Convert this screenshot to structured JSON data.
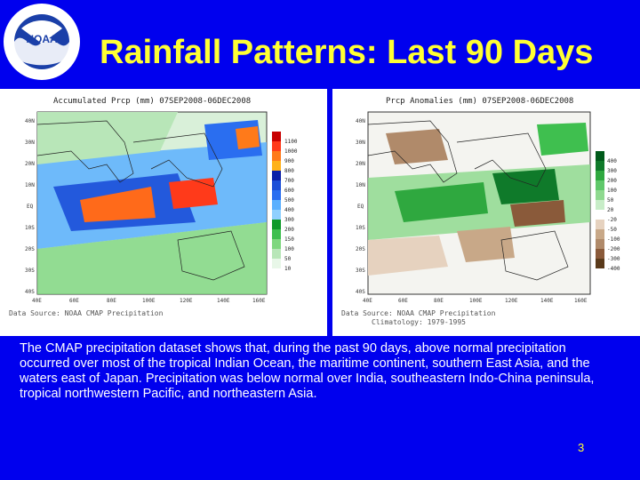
{
  "slide": {
    "title": "Rainfall Patterns: Last 90 Days",
    "caption": "The CMAP precipitation dataset shows that, during the past 90 days, above normal precipitation occurred over most of the tropical Indian Ocean, the maritime continent, southern East Asia, and the waters east of Japan. Precipitation was below normal over India, southeastern Indo-China peninsula, tropical northwestern Pacific, and northeastern Asia.",
    "page_number": "3"
  },
  "logo": {
    "text": "NOAA",
    "ring_text": "NATIONAL OCEANIC AND ATMOSPHERIC ADMINISTRATION · U.S. DEPARTMENT OF COMMERCE"
  },
  "left_map": {
    "title": "Accumulated Prcp (mm) 07SEP2008-06DEC2008",
    "source": "Data Source: NOAA CMAP Precipitation",
    "lat_labels": [
      "40N",
      "30N",
      "20N",
      "10N",
      "EQ",
      "10S",
      "20S",
      "30S",
      "40S"
    ],
    "lon_labels": [
      "40E",
      "60E",
      "80E",
      "100E",
      "120E",
      "140E",
      "160E"
    ],
    "colorbar": [
      "1100",
      "1000",
      "900",
      "800",
      "700",
      "600",
      "500",
      "400",
      "300",
      "200",
      "150",
      "100",
      "50",
      "10"
    ]
  },
  "right_map": {
    "title": "Prcp Anomalies (mm) 07SEP2008-06DEC2008",
    "source": "Data Source: NOAA CMAP Precipitation",
    "climatology": "Climatology: 1979-1995",
    "lat_labels": [
      "40N",
      "30N",
      "20N",
      "10N",
      "EQ",
      "10S",
      "20S",
      "30S",
      "40S"
    ],
    "lon_labels": [
      "40E",
      "60E",
      "80E",
      "100E",
      "120E",
      "140E",
      "160E"
    ],
    "colorbar": [
      "400",
      "300",
      "200",
      "100",
      "50",
      "20",
      "-20",
      "-50",
      "-100",
      "-200",
      "-300",
      "-400"
    ]
  }
}
